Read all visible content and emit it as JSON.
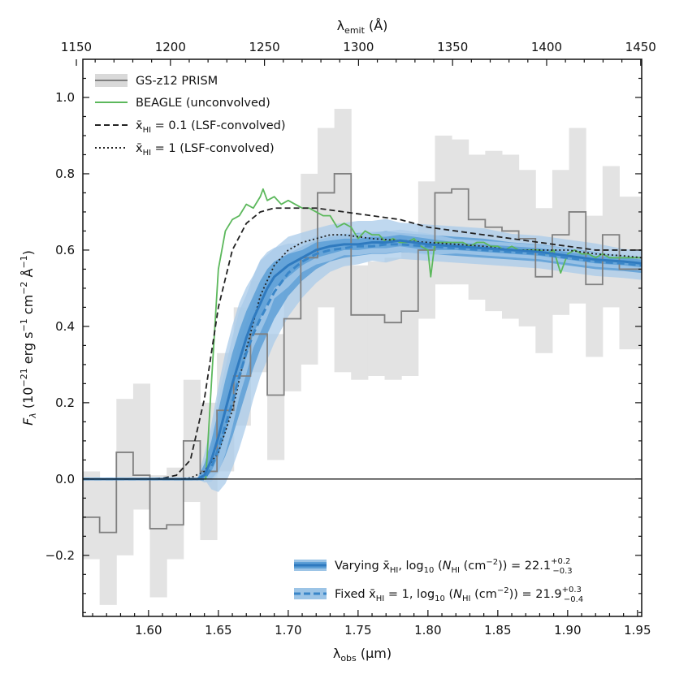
{
  "chart_data": {
    "type": "line",
    "xlabel": "λobs (μm)",
    "x2label": "λemit (Å)",
    "ylabel": "Fλ (10⁻²¹ erg s⁻¹ cm⁻² Å⁻¹)",
    "xlim": [
      1.553,
      1.953
    ],
    "ylim": [
      -0.36,
      1.1
    ],
    "x_ticks": [
      1.6,
      1.65,
      1.7,
      1.75,
      1.8,
      1.85,
      1.9,
      1.95
    ],
    "x_tick_labels": [
      "1.60",
      "1.65",
      "1.70",
      "1.75",
      "1.80",
      "1.85",
      "1.90",
      "1.95"
    ],
    "y_ticks": [
      -0.2,
      0.0,
      0.2,
      0.4,
      0.6,
      0.8,
      1.0
    ],
    "y_tick_labels": [
      "−0.2",
      "0.0",
      "0.2",
      "0.4",
      "0.6",
      "0.8",
      "1.0"
    ],
    "x2_ticks": [
      1150,
      1200,
      1250,
      1300,
      1350,
      1400,
      1450
    ],
    "x2_tick_labels": [
      "1150",
      "1200",
      "1250",
      "1300",
      "1350",
      "1400",
      "1450"
    ],
    "redshift_factor": 13.464,
    "zero_line": 0.0,
    "legend_top": {
      "position": "top-left",
      "entries": [
        "GS-z12 PRISM",
        "BEAGLE (unconvolved)",
        "x̄HI = 0.1 (LSF-convolved)",
        "x̄HI = 1 (LSF-convolved)"
      ]
    },
    "legend_bottom": {
      "position": "bottom-right",
      "entries": [
        "Varying x̄HI, log10 (NHI (cm⁻²)) = 22.1 +0.2 −0.3",
        "Fixed x̄HI = 1, log10 (NHI (cm⁻²)) = 21.9 +0.3 −0.4"
      ]
    },
    "series": [
      {
        "name": "GS-z12 PRISM",
        "style": "step",
        "color": "#808080",
        "edges": [
          1.553,
          1.565,
          1.577,
          1.589,
          1.601,
          1.613,
          1.625,
          1.637,
          1.649,
          1.661,
          1.673,
          1.685,
          1.697,
          1.709,
          1.721,
          1.733,
          1.745,
          1.757,
          1.769,
          1.781,
          1.793,
          1.805,
          1.817,
          1.829,
          1.841,
          1.853,
          1.865,
          1.877,
          1.889,
          1.901,
          1.913,
          1.925,
          1.937,
          1.953
        ],
        "values": [
          -0.1,
          -0.14,
          0.07,
          0.01,
          -0.13,
          -0.12,
          0.1,
          0.02,
          0.18,
          0.27,
          0.38,
          0.22,
          0.42,
          0.58,
          0.75,
          0.8,
          0.43,
          0.43,
          0.41,
          0.44,
          0.6,
          0.75,
          0.76,
          0.68,
          0.66,
          0.65,
          0.63,
          0.53,
          0.64,
          0.7,
          0.51,
          0.64,
          0.55
        ],
        "err_lo": [
          -0.21,
          -0.33,
          -0.2,
          -0.08,
          -0.31,
          -0.21,
          -0.06,
          -0.16,
          0.02,
          0.14,
          0.28,
          0.05,
          0.23,
          0.3,
          0.45,
          0.28,
          0.26,
          0.27,
          0.26,
          0.27,
          0.42,
          0.51,
          0.51,
          0.47,
          0.44,
          0.42,
          0.4,
          0.33,
          0.43,
          0.46,
          0.32,
          0.45,
          0.34
        ],
        "err_hi": [
          0.02,
          0.0,
          0.21,
          0.25,
          0.01,
          0.03,
          0.26,
          0.2,
          0.33,
          0.45,
          0.52,
          0.38,
          0.53,
          0.8,
          0.92,
          0.97,
          0.56,
          0.57,
          0.58,
          0.62,
          0.78,
          0.9,
          0.89,
          0.85,
          0.86,
          0.85,
          0.81,
          0.71,
          0.81,
          0.92,
          0.69,
          0.82,
          0.74
        ]
      },
      {
        "name": "BEAGLE (unconvolved)",
        "style": "line",
        "color": "#5cb85c",
        "x": [
          1.553,
          1.63,
          1.641,
          1.645,
          1.65,
          1.655,
          1.66,
          1.665,
          1.67,
          1.675,
          1.68,
          1.682,
          1.685,
          1.69,
          1.695,
          1.7,
          1.705,
          1.71,
          1.715,
          1.72,
          1.725,
          1.73,
          1.735,
          1.74,
          1.745,
          1.75,
          1.755,
          1.76,
          1.765,
          1.77,
          1.775,
          1.78,
          1.785,
          1.79,
          1.795,
          1.8,
          1.802,
          1.805,
          1.81,
          1.815,
          1.82,
          1.825,
          1.83,
          1.835,
          1.84,
          1.845,
          1.85,
          1.855,
          1.86,
          1.865,
          1.87,
          1.875,
          1.88,
          1.885,
          1.89,
          1.895,
          1.9,
          1.905,
          1.91,
          1.915,
          1.92,
          1.925,
          1.93,
          1.935,
          1.94,
          1.945,
          1.953
        ],
        "y": [
          0.0,
          0.0,
          0.0,
          0.25,
          0.55,
          0.65,
          0.68,
          0.69,
          0.72,
          0.71,
          0.74,
          0.76,
          0.73,
          0.74,
          0.72,
          0.73,
          0.72,
          0.71,
          0.71,
          0.7,
          0.69,
          0.69,
          0.66,
          0.67,
          0.66,
          0.63,
          0.65,
          0.64,
          0.64,
          0.62,
          0.63,
          0.62,
          0.62,
          0.63,
          0.61,
          0.6,
          0.53,
          0.62,
          0.62,
          0.62,
          0.62,
          0.62,
          0.61,
          0.62,
          0.62,
          0.61,
          0.61,
          0.6,
          0.61,
          0.6,
          0.6,
          0.6,
          0.6,
          0.59,
          0.6,
          0.54,
          0.59,
          0.6,
          0.59,
          0.59,
          0.58,
          0.59,
          0.58,
          0.58,
          0.58,
          0.58,
          0.58
        ]
      },
      {
        "name": "x̄HI = 0.1 (LSF-convolved)",
        "style": "dashed",
        "color": "#222222",
        "x": [
          1.553,
          1.6,
          1.61,
          1.62,
          1.63,
          1.64,
          1.65,
          1.66,
          1.67,
          1.68,
          1.69,
          1.7,
          1.72,
          1.74,
          1.76,
          1.78,
          1.8,
          1.82,
          1.84,
          1.86,
          1.88,
          1.9,
          1.92,
          1.94,
          1.953
        ],
        "y": [
          0.0,
          0.0,
          0.002,
          0.01,
          0.05,
          0.21,
          0.45,
          0.6,
          0.67,
          0.7,
          0.71,
          0.71,
          0.71,
          0.7,
          0.69,
          0.68,
          0.66,
          0.65,
          0.64,
          0.63,
          0.62,
          0.61,
          0.6,
          0.6,
          0.6
        ]
      },
      {
        "name": "x̄HI = 1 (LSF-convolved)",
        "style": "dotted",
        "color": "#222222",
        "x": [
          1.553,
          1.62,
          1.63,
          1.64,
          1.65,
          1.66,
          1.67,
          1.68,
          1.69,
          1.7,
          1.71,
          1.72,
          1.73,
          1.74,
          1.75,
          1.76,
          1.78,
          1.8,
          1.82,
          1.84,
          1.86,
          1.88,
          1.9,
          1.92,
          1.94,
          1.953
        ],
        "y": [
          0.0,
          0.0,
          0.003,
          0.02,
          0.07,
          0.18,
          0.34,
          0.48,
          0.56,
          0.6,
          0.62,
          0.63,
          0.64,
          0.64,
          0.635,
          0.63,
          0.625,
          0.62,
          0.615,
          0.61,
          0.6,
          0.6,
          0.6,
          0.59,
          0.585,
          0.58
        ]
      },
      {
        "name": "Varying x̄HI",
        "style": "solid-band",
        "color": "#2f7abf",
        "x": [
          1.553,
          1.635,
          1.64,
          1.645,
          1.65,
          1.655,
          1.66,
          1.665,
          1.67,
          1.675,
          1.68,
          1.685,
          1.69,
          1.7,
          1.71,
          1.72,
          1.73,
          1.74,
          1.75,
          1.76,
          1.77,
          1.78,
          1.79,
          1.8,
          1.82,
          1.84,
          1.86,
          1.88,
          1.9,
          1.92,
          1.94,
          1.953
        ],
        "y": [
          0.0,
          0.0,
          0.01,
          0.05,
          0.11,
          0.18,
          0.25,
          0.31,
          0.37,
          0.42,
          0.46,
          0.5,
          0.53,
          0.56,
          0.58,
          0.6,
          0.61,
          0.615,
          0.615,
          0.62,
          0.62,
          0.625,
          0.62,
          0.615,
          0.61,
          0.605,
          0.6,
          0.595,
          0.585,
          0.575,
          0.57,
          0.565
        ],
        "lo": [
          0.0,
          0.0,
          0.0,
          0.02,
          0.06,
          0.12,
          0.19,
          0.26,
          0.32,
          0.38,
          0.42,
          0.46,
          0.5,
          0.53,
          0.56,
          0.58,
          0.59,
          0.6,
          0.6,
          0.605,
          0.605,
          0.61,
          0.605,
          0.6,
          0.6,
          0.595,
          0.59,
          0.585,
          0.575,
          0.565,
          0.56,
          0.555
        ],
        "hi": [
          0.0,
          0.0,
          0.04,
          0.1,
          0.18,
          0.26,
          0.33,
          0.39,
          0.44,
          0.48,
          0.52,
          0.55,
          0.57,
          0.59,
          0.6,
          0.62,
          0.625,
          0.63,
          0.63,
          0.635,
          0.635,
          0.64,
          0.635,
          0.63,
          0.62,
          0.615,
          0.61,
          0.605,
          0.595,
          0.585,
          0.58,
          0.575
        ]
      },
      {
        "name": "Fixed x̄HI = 1",
        "style": "dashed-band",
        "color": "#3a86c8",
        "x": [
          1.553,
          1.64,
          1.645,
          1.65,
          1.655,
          1.66,
          1.665,
          1.67,
          1.675,
          1.68,
          1.69,
          1.7,
          1.71,
          1.72,
          1.73,
          1.74,
          1.75,
          1.76,
          1.77,
          1.78,
          1.8,
          1.82,
          1.84,
          1.86,
          1.88,
          1.9,
          1.92,
          1.94,
          1.953
        ],
        "y": [
          0.0,
          0.0,
          0.03,
          0.08,
          0.14,
          0.2,
          0.27,
          0.33,
          0.38,
          0.42,
          0.49,
          0.54,
          0.57,
          0.59,
          0.6,
          0.605,
          0.61,
          0.61,
          0.615,
          0.615,
          0.61,
          0.605,
          0.6,
          0.595,
          0.59,
          0.58,
          0.57,
          0.565,
          0.56
        ],
        "lo": [
          0.0,
          0.0,
          0.0,
          0.02,
          0.06,
          0.11,
          0.17,
          0.23,
          0.29,
          0.34,
          0.42,
          0.48,
          0.52,
          0.55,
          0.57,
          0.58,
          0.585,
          0.59,
          0.59,
          0.595,
          0.59,
          0.585,
          0.58,
          0.575,
          0.57,
          0.56,
          0.55,
          0.545,
          0.54
        ],
        "hi": [
          0.0,
          0.0,
          0.08,
          0.15,
          0.22,
          0.29,
          0.36,
          0.41,
          0.46,
          0.5,
          0.55,
          0.59,
          0.61,
          0.625,
          0.635,
          0.64,
          0.645,
          0.645,
          0.65,
          0.645,
          0.64,
          0.635,
          0.63,
          0.62,
          0.615,
          0.605,
          0.595,
          0.585,
          0.58
        ]
      }
    ]
  }
}
